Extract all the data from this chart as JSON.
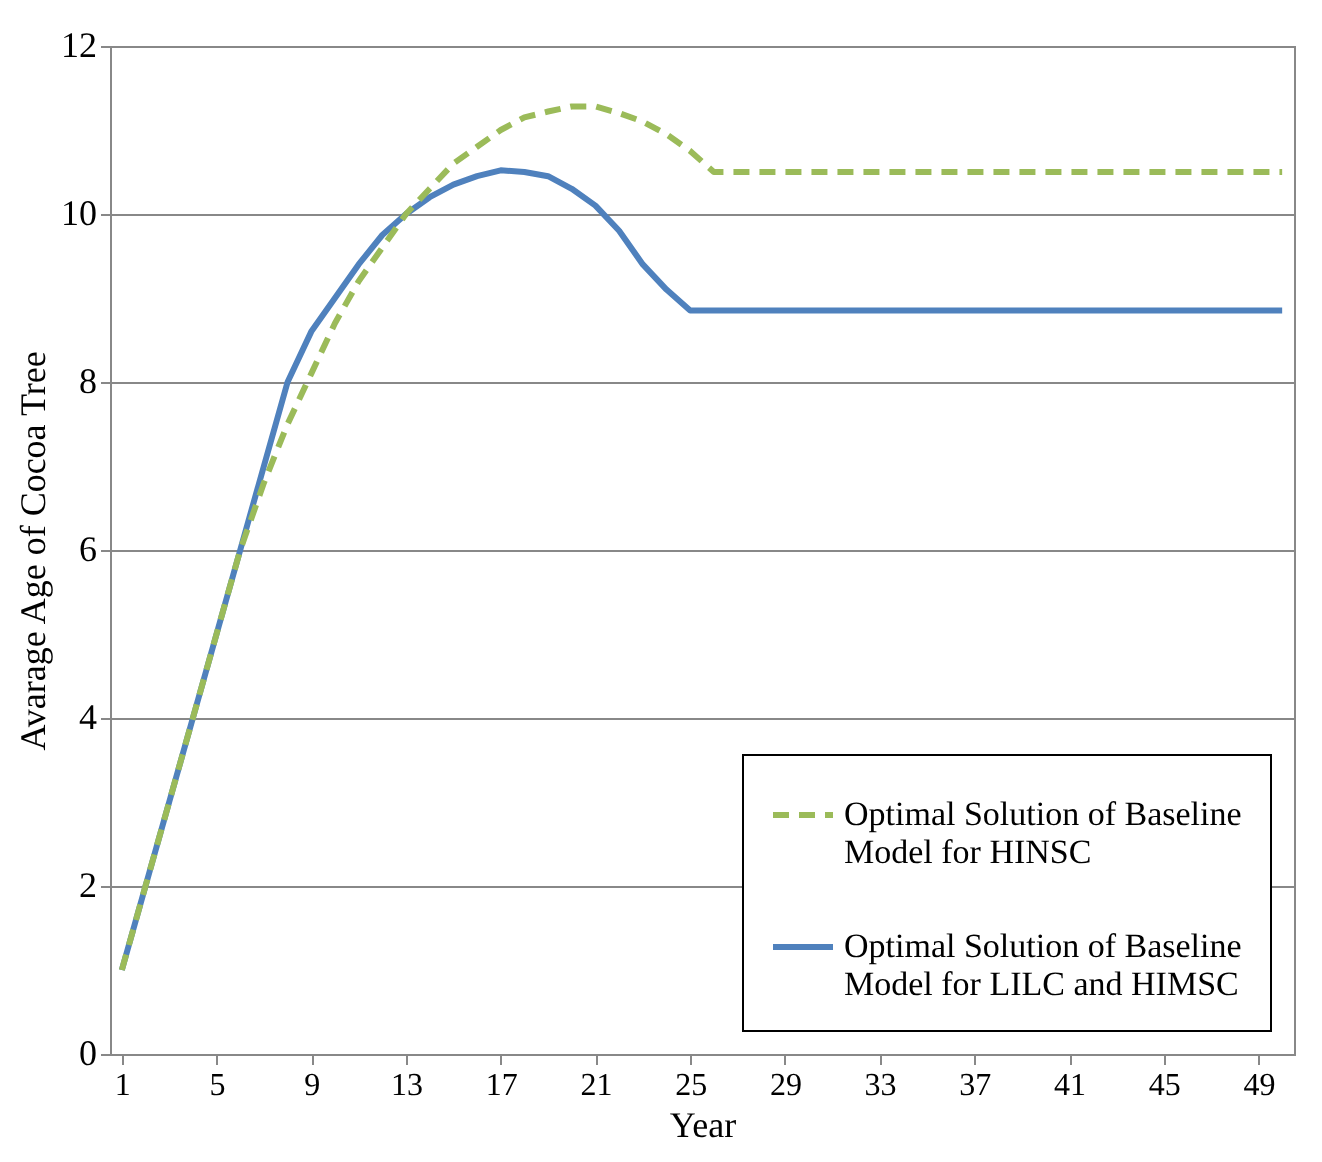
{
  "chart_data": {
    "type": "line",
    "xlabel": "Year",
    "ylabel": "Avarage Age of Cocoa Tree",
    "x": [
      1,
      2,
      3,
      4,
      5,
      6,
      7,
      8,
      9,
      10,
      11,
      12,
      13,
      14,
      15,
      16,
      17,
      18,
      19,
      20,
      21,
      22,
      23,
      24,
      25,
      26,
      27,
      28,
      29,
      30,
      31,
      32,
      33,
      34,
      35,
      36,
      37,
      38,
      39,
      40,
      41,
      42,
      43,
      44,
      45,
      46,
      47,
      48,
      49,
      50
    ],
    "xlim": [
      0.5,
      50.5
    ],
    "xticks": [
      1,
      5,
      9,
      13,
      17,
      21,
      25,
      29,
      33,
      37,
      41,
      45,
      49
    ],
    "ylim": [
      0,
      12
    ],
    "yticks": [
      0,
      2,
      4,
      6,
      8,
      10,
      12
    ],
    "grid": "y",
    "legend": "bottom right",
    "series": [
      {
        "name": "Optimal Solution of Baseline Model for HINSC",
        "color": "#9bbb59",
        "line_style": "dashed",
        "values": [
          1,
          2,
          3,
          4,
          5,
          6,
          6.8,
          7.5,
          8.1,
          8.7,
          9.2,
          9.6,
          10.0,
          10.3,
          10.6,
          10.8,
          11.0,
          11.15,
          11.22,
          11.28,
          11.28,
          11.2,
          11.1,
          10.95,
          10.75,
          10.5,
          10.5,
          10.5,
          10.5,
          10.5,
          10.5,
          10.5,
          10.5,
          10.5,
          10.5,
          10.5,
          10.5,
          10.5,
          10.5,
          10.5,
          10.5,
          10.5,
          10.5,
          10.5,
          10.5,
          10.5,
          10.5,
          10.5,
          10.5,
          10.5
        ]
      },
      {
        "name": "Optimal Solution of Baseline Model for LILC and HIMSC",
        "color": "#4f81bd",
        "line_style": "solid",
        "values": [
          1,
          2,
          3,
          4,
          5,
          6,
          7,
          8,
          8.6,
          9.0,
          9.4,
          9.75,
          10.0,
          10.2,
          10.35,
          10.45,
          10.52,
          10.5,
          10.45,
          10.3,
          10.1,
          9.8,
          9.4,
          9.1,
          8.85,
          8.85,
          8.85,
          8.85,
          8.85,
          8.85,
          8.85,
          8.85,
          8.85,
          8.85,
          8.85,
          8.85,
          8.85,
          8.85,
          8.85,
          8.85,
          8.85,
          8.85,
          8.85,
          8.85,
          8.85,
          8.85,
          8.85,
          8.85,
          8.85,
          8.85
        ]
      }
    ]
  }
}
